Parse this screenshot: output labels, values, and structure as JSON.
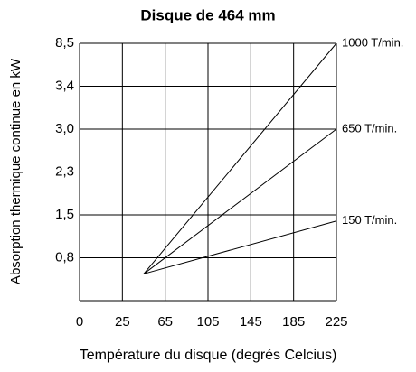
{
  "chart_data": {
    "type": "line",
    "title": "Disque de 464 mm",
    "x_label": "Température du disque (degrés Celcius)",
    "y_label": "Absorption thermique continue en kW",
    "xlim": [
      0,
      225
    ],
    "xticks": [
      0,
      25,
      65,
      105,
      145,
      185,
      225
    ],
    "ylim": [
      0,
      8.5
    ],
    "yticks": [
      {
        "value": 0.8,
        "label": "0,8"
      },
      {
        "value": 1.5,
        "label": "1,5"
      },
      {
        "value": 2.3,
        "label": "2,3"
      },
      {
        "value": 3.0,
        "label": "3,0"
      },
      {
        "value": 3.4,
        "label": "3,4"
      },
      {
        "value": 8.5,
        "label": "8,5"
      }
    ],
    "grid": true,
    "x": [
      45,
      225
    ],
    "series": [
      {
        "name": "1000 T/min.",
        "color": "#000000",
        "values": [
          0.5,
          8.5
        ]
      },
      {
        "name": "650 T/min.",
        "color": "#000000",
        "values": [
          0.5,
          3.0
        ]
      },
      {
        "name": "150 T/min.",
        "color": "#000000",
        "values": [
          0.5,
          1.4
        ]
      }
    ]
  }
}
